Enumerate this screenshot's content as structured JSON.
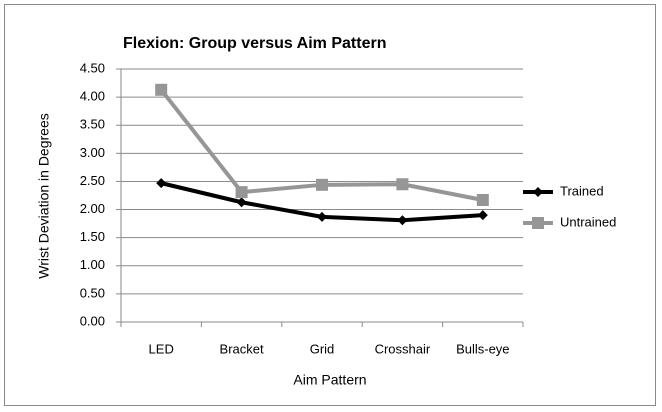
{
  "chart_data": {
    "type": "line",
    "title": "Flexion: Group versus Aim Pattern",
    "x_label": "Aim Pattern",
    "y_label": "Wrist Deviation in Degrees",
    "categories": [
      "LED",
      "Bracket",
      "Grid",
      "Crosshair",
      "Bulls-eye"
    ],
    "series": [
      {
        "name": "Trained",
        "color": "#000000",
        "marker": "diamond",
        "values": [
          2.47,
          2.13,
          1.87,
          1.81,
          1.9
        ]
      },
      {
        "name": "Untrained",
        "color": "#969696",
        "marker": "square",
        "values": [
          4.13,
          2.31,
          2.44,
          2.45,
          2.17
        ]
      }
    ],
    "ylim": [
      0,
      4.5
    ],
    "yticks": [
      {
        "value": 0,
        "label": "0.00"
      },
      {
        "value": 0.5,
        "label": "0.50"
      },
      {
        "value": 1,
        "label": "1.00"
      },
      {
        "value": 1.5,
        "label": "1.50"
      },
      {
        "value": 2,
        "label": "2.00"
      },
      {
        "value": 2.5,
        "label": "2.50"
      },
      {
        "value": 3,
        "label": "3.00"
      },
      {
        "value": 3.5,
        "label": "3.50"
      },
      {
        "value": 4,
        "label": "4.00"
      },
      {
        "value": 4.5,
        "label": "4.50"
      }
    ],
    "grid": true,
    "legend": "right"
  }
}
